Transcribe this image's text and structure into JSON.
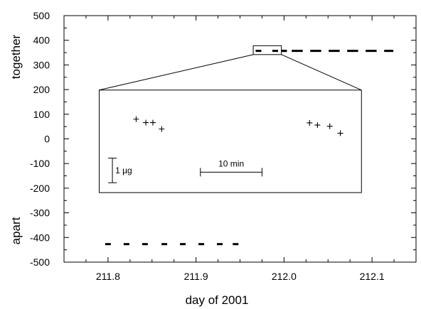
{
  "chart_data": {
    "type": "scatter",
    "xlabel": "day of 2001",
    "ylabel_top": "together",
    "ylabel_bottom": "apart",
    "xlim": [
      211.75,
      212.15
    ],
    "ylim": [
      -500,
      500
    ],
    "xticks": [
      "211.8",
      "211.9",
      "212.0",
      "212.1"
    ],
    "yticks": [
      "500",
      "400",
      "300",
      "200",
      "100",
      "0",
      "-100",
      "-200",
      "-300",
      "-400",
      "-500"
    ],
    "series": [
      {
        "marker": "dash",
        "x": [
          212.0,
          212.0,
          212.018,
          212.039,
          212.06,
          212.081,
          212.102,
          212.121
        ],
        "y": [
          357,
          357,
          357,
          357,
          357,
          357,
          357,
          357
        ]
      },
      {
        "marker": "dash",
        "x": [
          211.971,
          211.99,
          212.012,
          212.033,
          212.054,
          212.075,
          212.096,
          212.117
        ],
        "y": [
          357,
          357,
          357,
          357,
          357,
          357,
          357,
          357
        ]
      },
      {
        "marker": "dash",
        "x": [
          211.8,
          211.821,
          211.842,
          211.864,
          211.885,
          211.906,
          211.927,
          211.945
        ],
        "y": [
          -427,
          -427,
          -427,
          -427,
          -427,
          -427,
          -427,
          -427
        ]
      }
    ],
    "inset": {
      "zoom_region_x": [
        211.965,
        211.997
      ],
      "zoom_region_y": [
        342,
        378
      ],
      "box_x": [
        211.79,
        212.088
      ],
      "box_y": [
        -218,
        198
      ],
      "points_left": [
        {
          "x": 211.832,
          "y": 80
        },
        {
          "x": 211.843,
          "y": 66
        },
        {
          "x": 211.851,
          "y": 66
        },
        {
          "x": 211.861,
          "y": 40
        }
      ],
      "points_right": [
        {
          "x": 212.029,
          "y": 65
        },
        {
          "x": 212.038,
          "y": 56
        },
        {
          "x": 212.052,
          "y": 51
        },
        {
          "x": 212.064,
          "y": 23
        }
      ],
      "scale_vertical_label": "1 µg",
      "scale_horizontal_label": "10 min"
    }
  }
}
